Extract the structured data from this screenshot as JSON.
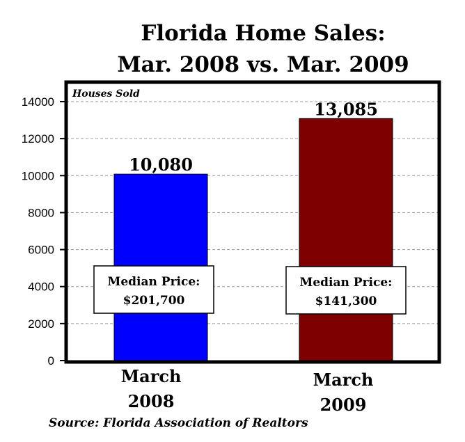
{
  "chart_data": {
    "type": "bar",
    "title": [
      "Florida Home Sales:",
      "Mar. 2008 vs. Mar. 2009"
    ],
    "ylabel": "Houses Sold",
    "xlabel": "",
    "ylim": [
      0,
      14000
    ],
    "yticks": [
      0,
      2000,
      4000,
      6000,
      8000,
      10000,
      12000,
      14000
    ],
    "grid": true,
    "legend": "none",
    "categories": [
      [
        "March",
        "2008"
      ],
      [
        "March",
        "2009"
      ]
    ],
    "values": [
      10080,
      13085
    ],
    "data_labels": [
      "10,080",
      "13,085"
    ],
    "colors": [
      "#0000ff",
      "#7f0000"
    ],
    "annotations": [
      {
        "category_index": 0,
        "lines": [
          "Median Price:",
          "$201,700"
        ]
      },
      {
        "category_index": 1,
        "lines": [
          "Median Price:",
          "$141,300"
        ]
      }
    ],
    "source": "Source: Florida Association of Realtors"
  }
}
